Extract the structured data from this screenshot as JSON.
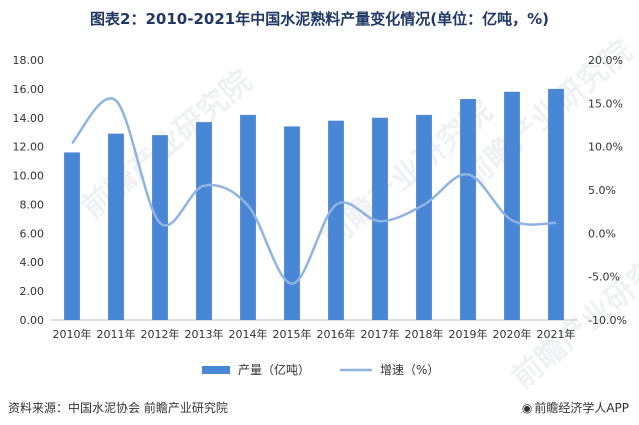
{
  "title": "图表2：2010-2021年中国水泥熟料产量变化情况(单位：亿吨，%)",
  "chart_data": {
    "type": "bar",
    "categories": [
      "2010年",
      "2011年",
      "2012年",
      "2013年",
      "2014年",
      "2015年",
      "2016年",
      "2017年",
      "2018年",
      "2019年",
      "2020年",
      "2021年"
    ],
    "series": [
      {
        "name": "产量（亿吨）",
        "kind": "bar",
        "axis": "left",
        "color": "#4a86d6",
        "values": [
          11.6,
          12.9,
          12.8,
          13.7,
          14.2,
          13.4,
          13.8,
          14.0,
          14.2,
          15.3,
          15.8,
          16.0
        ]
      },
      {
        "name": "增速（%）",
        "kind": "line",
        "axis": "right",
        "color": "#8fb4e3",
        "values": [
          10.4,
          15.3,
          1.2,
          5.5,
          3.2,
          -5.8,
          3.3,
          1.4,
          3.3,
          6.8,
          1.5,
          1.2
        ]
      }
    ],
    "y_left": {
      "ylim": [
        0,
        18
      ],
      "ticks": [
        "0.00",
        "2.00",
        "4.00",
        "6.00",
        "8.00",
        "10.00",
        "12.00",
        "14.00",
        "16.00",
        "18.00"
      ]
    },
    "y_right": {
      "ylim": [
        -10,
        20
      ],
      "ticks": [
        "-10.0%",
        "-5.0%",
        "0.0%",
        "5.0%",
        "10.0%",
        "15.0%",
        "20.0%"
      ]
    },
    "legend_position": "bottom",
    "grid": false
  },
  "footer": {
    "source": "资料来源：中国水泥协会 前瞻产业研究院",
    "brand": "前瞻经济学人APP",
    "brand_icon": "eye-icon"
  },
  "watermarks": [
    "前瞻产业研究院",
    "前瞻产业研究院",
    "前瞻产业研究院",
    "前瞻产业研究院"
  ]
}
